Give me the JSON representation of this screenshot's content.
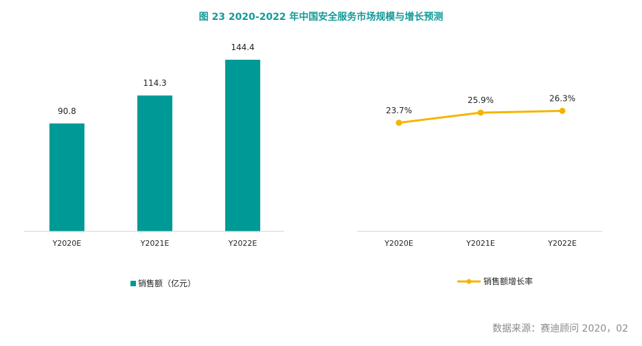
{
  "title": "图 23   2020-2022 年中国安全服务市场规模与增长预测",
  "source": "数据来源：赛迪顾问    2020，02",
  "chart_data": [
    {
      "type": "bar",
      "categories": [
        "Y2020E",
        "Y2021E",
        "Y2022E"
      ],
      "series": [
        {
          "name": "销售额（亿元）",
          "values": [
            90.8,
            114.3,
            144.4
          ],
          "color": "#009a96"
        }
      ],
      "data_labels": [
        "90.8",
        "114.3",
        "144.4"
      ],
      "ylim": [
        0,
        160
      ],
      "legend_placement": "bottom-center",
      "grid": false
    },
    {
      "type": "line",
      "categories": [
        "Y2020E",
        "Y2021E",
        "Y2022E"
      ],
      "series": [
        {
          "name": "销售额增长率",
          "values": [
            23.7,
            25.9,
            26.3
          ],
          "color": "#f5b400"
        }
      ],
      "data_labels": [
        "23.7%",
        "25.9%",
        "26.3%"
      ],
      "ylim": [
        0,
        40
      ],
      "legend_placement": "bottom-center",
      "grid": false
    }
  ]
}
